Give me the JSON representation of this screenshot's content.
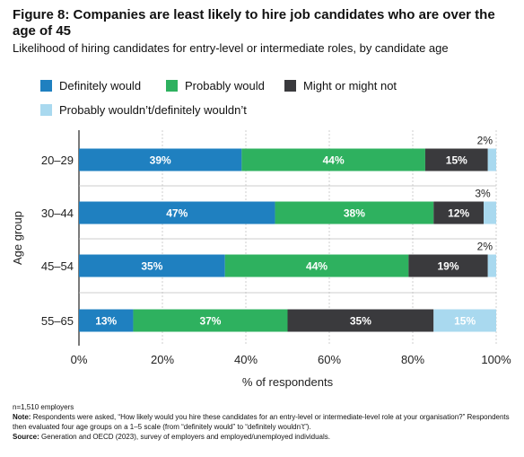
{
  "header": {
    "title": "Figure 8: Companies are least likely to hire job candidates who are over the age of 45",
    "subtitle": "Likelihood of hiring candidates for entry-level or intermediate roles, by candidate age"
  },
  "footer": {
    "sample": "n=1,510 employers",
    "note_label": "Note:",
    "note_text": "Respondents were asked, “How likely would you hire these candidates for an entry-level or intermediate-level role at your organisation?” Respondents then evaluated four age groups on a 1–5 scale (from “definitely would” to “definitely wouldn’t”).",
    "source_label": "Source:",
    "source_text": "Generation and OECD (2023), survey of employers and employed/unemployed individuals."
  },
  "chart_data": {
    "type": "bar",
    "orientation": "horizontal",
    "stacked": true,
    "title": "Figure 8: Companies are least likely to hire job candidates who are over the age of 45",
    "subtitle": "Likelihood of hiring candidates for entry-level or intermediate roles, by candidate age",
    "xlabel": "% of respondents",
    "ylabel": "Age group",
    "xlim": [
      0,
      100
    ],
    "x_ticks": [
      "0%",
      "20%",
      "40%",
      "60%",
      "80%",
      "100%"
    ],
    "x_tick_values": [
      0,
      20,
      40,
      60,
      80,
      100
    ],
    "grid": true,
    "legend_placement": "top",
    "categories": [
      "20–29",
      "30–44",
      "45–54",
      "55–65"
    ],
    "series": [
      {
        "name": "Definitely would",
        "color": "#1f80c0",
        "label_color": "#ffffff",
        "values": [
          39,
          47,
          35,
          13
        ]
      },
      {
        "name": "Probably would",
        "color": "#2eb15f",
        "label_color": "#ffffff",
        "values": [
          44,
          38,
          44,
          37
        ]
      },
      {
        "name": "Might or might not",
        "color": "#3a3a3d",
        "label_color": "#ffffff",
        "values": [
          15,
          12,
          19,
          35
        ]
      },
      {
        "name": "Probably wouldn’t/definitely wouldn’t",
        "color": "#a9d9ef",
        "label_color": "#ffffff",
        "values": [
          2,
          3,
          2,
          15
        ]
      }
    ],
    "data_labels": [
      [
        "39%",
        "44%",
        "15%",
        "2%"
      ],
      [
        "47%",
        "38%",
        "12%",
        "3%"
      ],
      [
        "35%",
        "44%",
        "19%",
        "2%"
      ],
      [
        "13%",
        "37%",
        "35%",
        "15%"
      ]
    ]
  }
}
